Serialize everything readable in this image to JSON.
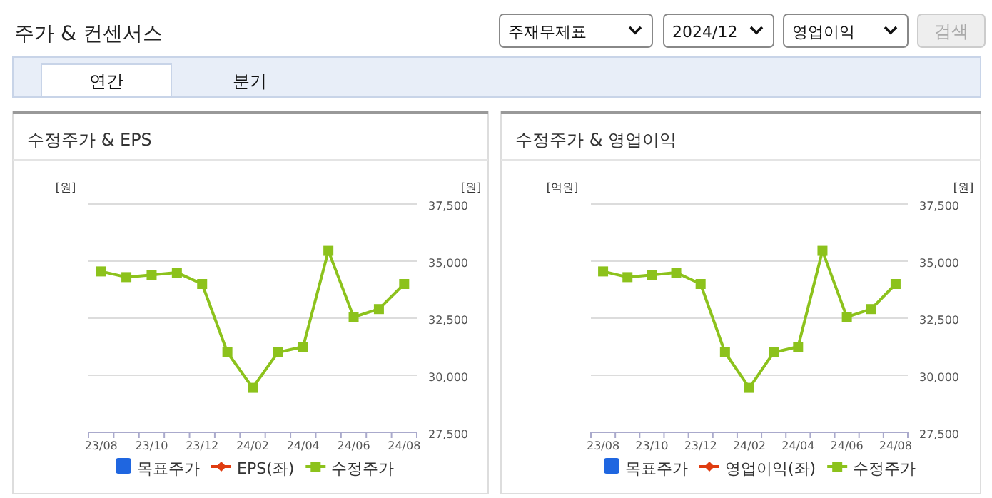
{
  "chart_data": [
    {
      "type": "other",
      "title": "주가 & 컨센서스",
      "annotations": [
        "주재무제표",
        "2024/12",
        "영업이익",
        "검색",
        "연간",
        "분기"
      ]
    },
    {
      "type": "line",
      "title": "수정주가 & EPS",
      "ylabel": "[원]",
      "y2label": "[원]",
      "categories": [
        "23/08",
        null,
        "23/10",
        null,
        "23/12",
        null,
        "24/02",
        null,
        "24/04",
        null,
        "24/06",
        null,
        "24/08"
      ],
      "y2lim": [
        27500,
        37500
      ],
      "y2ticks": [
        {
          "value": 27500,
          "label": "27,500"
        },
        {
          "value": 30000,
          "label": "30,000"
        },
        {
          "value": 32500,
          "label": "32,500"
        },
        {
          "value": 35000,
          "label": "35,000"
        },
        {
          "value": 37500,
          "label": "37,500"
        }
      ],
      "grid": "y",
      "legend": "bottom",
      "series": [
        {
          "name": "목표주가",
          "type": "bar",
          "color": "#1f66e0",
          "values": [
            null,
            null,
            null,
            null,
            null,
            null,
            null,
            null,
            null,
            null,
            null,
            null,
            null
          ]
        },
        {
          "name": "EPS(좌)",
          "type": "line",
          "color": "#e03c10",
          "marker": "diamond",
          "values": [
            null,
            null,
            null,
            null,
            null,
            null,
            null,
            null,
            null,
            null,
            null,
            null,
            null
          ]
        },
        {
          "name": "수정주가",
          "type": "line",
          "axis": "y2",
          "color": "#8cc21c",
          "marker": "square",
          "values": [
            34550,
            34300,
            34400,
            34500,
            34000,
            31000,
            29450,
            31000,
            31250,
            35450,
            32550,
            32900,
            34000
          ]
        }
      ]
    },
    {
      "type": "line",
      "title": "수정주가 & 영업이익",
      "ylabel": "[억원]",
      "y2label": "[원]",
      "categories": [
        "23/08",
        null,
        "23/10",
        null,
        "23/12",
        null,
        "24/02",
        null,
        "24/04",
        null,
        "24/06",
        null,
        "24/08"
      ],
      "y2lim": [
        27500,
        37500
      ],
      "y2ticks": [
        {
          "value": 27500,
          "label": "27,500"
        },
        {
          "value": 30000,
          "label": "30,000"
        },
        {
          "value": 32500,
          "label": "32,500"
        },
        {
          "value": 35000,
          "label": "35,000"
        },
        {
          "value": 37500,
          "label": "37,500"
        }
      ],
      "grid": "y",
      "legend": "bottom",
      "series": [
        {
          "name": "목표주가",
          "type": "bar",
          "color": "#1f66e0",
          "values": [
            null,
            null,
            null,
            null,
            null,
            null,
            null,
            null,
            null,
            null,
            null,
            null,
            null
          ]
        },
        {
          "name": "영업이익(좌)",
          "type": "line",
          "color": "#e03c10",
          "marker": "diamond",
          "values": [
            null,
            null,
            null,
            null,
            null,
            null,
            null,
            null,
            null,
            null,
            null,
            null,
            null
          ]
        },
        {
          "name": "수정주가",
          "type": "line",
          "axis": "y2",
          "color": "#8cc21c",
          "marker": "square",
          "values": [
            34550,
            34300,
            34400,
            34500,
            34000,
            31000,
            29450,
            31000,
            31250,
            35450,
            32550,
            32900,
            34000
          ]
        }
      ]
    }
  ]
}
